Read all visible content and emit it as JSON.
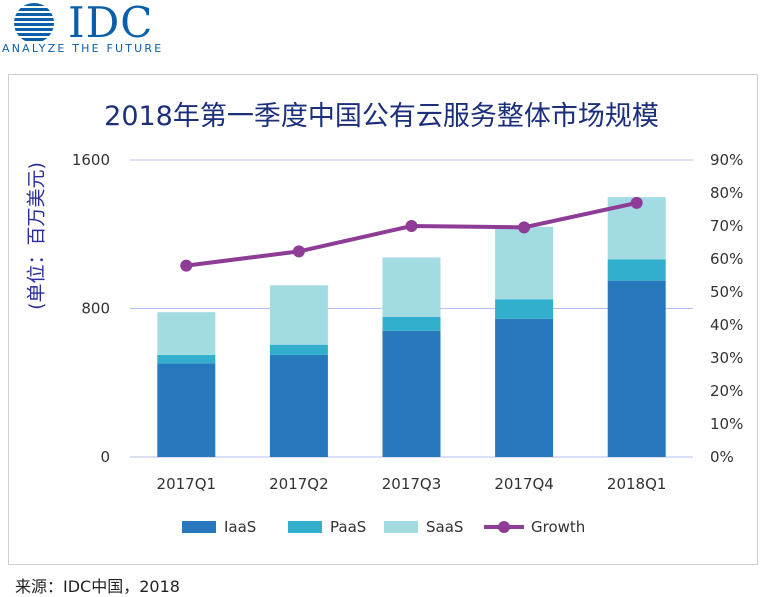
{
  "logo": {
    "brand": "IDC",
    "tagline": "ANALYZE THE FUTURE"
  },
  "source": "来源：IDC中国，2018",
  "colors": {
    "iaas": "#2878bd",
    "paas": "#32afcc",
    "saas": "#a3dbe3",
    "growth": "#8e3c96",
    "grid": "#b8bce8",
    "title": "#1c2f7a"
  },
  "chart_data": {
    "type": "bar",
    "stacked": true,
    "title": "2018年第一季度中国公有云服务整体市场规模",
    "ylabel": "(单位：百万美元)",
    "xlabel": "",
    "categories": [
      "2017Q1",
      "2017Q2",
      "2017Q3",
      "2017Q4",
      "2018Q1"
    ],
    "series": [
      {
        "name": "IaaS",
        "values": [
          505,
          550,
          680,
          745,
          950
        ]
      },
      {
        "name": "PaaS",
        "values": [
          45,
          55,
          75,
          105,
          115
        ]
      },
      {
        "name": "SaaS",
        "values": [
          230,
          320,
          320,
          390,
          335
        ]
      }
    ],
    "line_series": {
      "name": "Growth",
      "axis": "right",
      "values": [
        58,
        62.3,
        70,
        69.6,
        77
      ]
    },
    "ylim": [
      0,
      1600
    ],
    "yticks": [
      "1600",
      "800",
      "0"
    ],
    "ytick_values": [
      1600,
      800,
      0
    ],
    "y2lim": [
      0,
      90
    ],
    "y2ticks": [
      "90%",
      "80%",
      "70%",
      "60%",
      "50%",
      "40%",
      "30%",
      "20%",
      "10%",
      "0%"
    ],
    "y2tick_values": [
      90,
      80,
      70,
      60,
      50,
      40,
      30,
      20,
      10,
      0
    ],
    "grid": true,
    "legend_position": "bottom"
  }
}
